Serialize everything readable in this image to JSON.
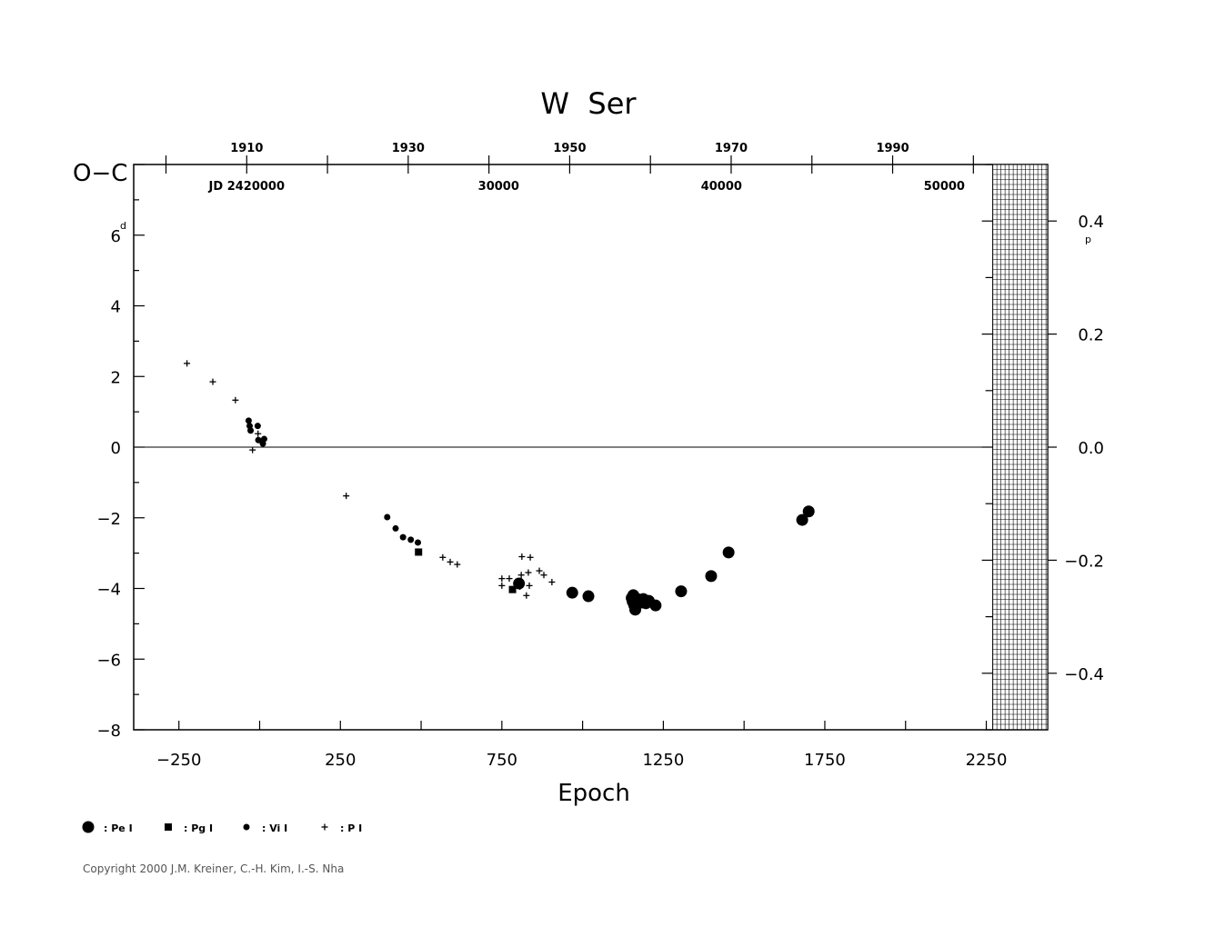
{
  "chart_data": {
    "type": "scatter",
    "title": "W  Ser",
    "xlabel": "Epoch",
    "ylabel": "O−C",
    "y_unit_label": "d",
    "y2_unit_label": "p",
    "xlim": [
      -390,
      2440
    ],
    "ylim": [
      -8,
      8
    ],
    "y2lim": [
      -0.5,
      0.5
    ],
    "x_ticks": [
      -250,
      250,
      750,
      1250,
      1750,
      2250
    ],
    "x_tick_labels": [
      "−250",
      "250",
      "750",
      "1250",
      "1750",
      "2250"
    ],
    "y_ticks": [
      -8,
      -6,
      -4,
      -2,
      0,
      2,
      4,
      6
    ],
    "y_tick_labels": [
      "−8",
      "−6",
      "−4",
      "−2",
      "0",
      "2",
      "4",
      "6"
    ],
    "y2_ticks": [
      0.4,
      0.2,
      0.0,
      -0.2,
      -0.4
    ],
    "y2_tick_labels": [
      "0.4",
      "0.2",
      "0.0",
      "−0.2",
      "−0.4"
    ],
    "top_year_ticks": [
      1910,
      1930,
      1950,
      1970,
      1990
    ],
    "top_year_epochs": [
      -40,
      460,
      960,
      1460,
      1960
    ],
    "top_year_minor_epochs": [
      -290,
      -40,
      210,
      460,
      710,
      960,
      1210,
      1460,
      1710,
      1960,
      2210
    ],
    "jd_labels": [
      {
        "text": "JD  2420000",
        "epoch": -40
      },
      {
        "text": "30000",
        "epoch": 740
      },
      {
        "text": "40000",
        "epoch": 1430
      },
      {
        "text": "50000",
        "epoch": 2120
      }
    ],
    "zero_line": true,
    "hatched_region_x": [
      2270,
      2440
    ],
    "series": [
      {
        "name": "Pe I",
        "marker": "large-dot",
        "points": [
          [
            803,
            -3.86
          ],
          [
            968,
            -4.12
          ],
          [
            1018,
            -4.22
          ],
          [
            1152,
            -4.27
          ],
          [
            1155,
            -4.37
          ],
          [
            1157,
            -4.19
          ],
          [
            1160,
            -4.48
          ],
          [
            1163,
            -4.6
          ],
          [
            1170,
            -4.3
          ],
          [
            1178,
            -4.35
          ],
          [
            1182,
            -4.4
          ],
          [
            1188,
            -4.3
          ],
          [
            1196,
            -4.42
          ],
          [
            1205,
            -4.35
          ],
          [
            1226,
            -4.48
          ],
          [
            1305,
            -4.08
          ],
          [
            1398,
            -3.65
          ],
          [
            1452,
            -2.98
          ],
          [
            1680,
            -2.06
          ],
          [
            1700,
            -1.82
          ]
        ]
      },
      {
        "name": "Pg I",
        "marker": "square",
        "points": [
          [
            492,
            -2.97
          ],
          [
            783,
            -4.03
          ]
        ]
      },
      {
        "name": "Vi I",
        "marker": "small-dot",
        "points": [
          [
            -34,
            0.75
          ],
          [
            -31,
            0.6
          ],
          [
            -28,
            0.47
          ],
          [
            -6,
            0.6
          ],
          [
            -4,
            0.2
          ],
          [
            10,
            0.1
          ],
          [
            14,
            0.23
          ],
          [
            395,
            -1.98
          ],
          [
            421,
            -2.3
          ],
          [
            444,
            -2.55
          ],
          [
            468,
            -2.62
          ],
          [
            490,
            -2.7
          ]
        ]
      },
      {
        "name": "P I",
        "marker": "plus",
        "points": [
          [
            -225,
            2.37
          ],
          [
            -145,
            1.85
          ],
          [
            -75,
            1.33
          ],
          [
            -5,
            0.38
          ],
          [
            -22,
            -0.08
          ],
          [
            268,
            -1.38
          ],
          [
            567,
            -3.12
          ],
          [
            590,
            -3.25
          ],
          [
            612,
            -3.32
          ],
          [
            750,
            -3.72
          ],
          [
            750,
            -3.92
          ],
          [
            773,
            -3.72
          ],
          [
            806,
            -3.95
          ],
          [
            810,
            -3.62
          ],
          [
            812,
            -3.1
          ],
          [
            826,
            -4.2
          ],
          [
            832,
            -3.55
          ],
          [
            835,
            -3.92
          ],
          [
            838,
            -3.12
          ],
          [
            866,
            -3.5
          ],
          [
            880,
            -3.62
          ],
          [
            905,
            -3.82
          ]
        ]
      }
    ],
    "legend": {
      "position": "bottom-left",
      "entries": [
        {
          "marker": "large-dot",
          "label": ": Pe  I"
        },
        {
          "marker": "square",
          "label": ": Pg  I"
        },
        {
          "marker": "small-dot",
          "label": ": Vi  I"
        },
        {
          "marker": "plus",
          "label": ": P  I"
        }
      ]
    }
  },
  "footer": {
    "copyright": "Copyright 2000 J.M. Kreiner, C.-H. Kim, I.-S. Nha"
  }
}
